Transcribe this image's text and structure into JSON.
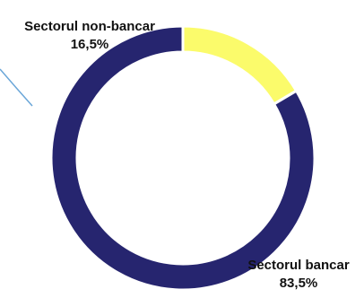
{
  "chart_data": {
    "type": "pie",
    "variant": "donut",
    "title": "",
    "slices": [
      {
        "label": "Sectorul non-bancar",
        "value": 16.5,
        "value_label": "16,5%",
        "color": "#fbfb6b"
      },
      {
        "label": "Sectorul bancar",
        "value": 83.5,
        "value_label": "83,5%",
        "color": "#26256f"
      }
    ],
    "legend": "none",
    "decorations": {
      "accent_line_color": "#6aa6d8"
    }
  }
}
